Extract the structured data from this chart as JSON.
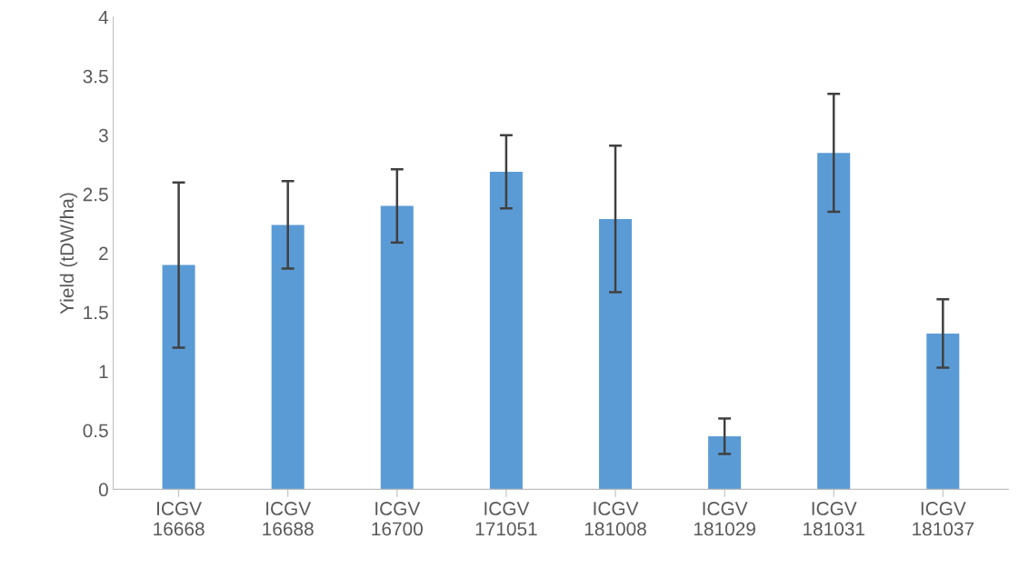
{
  "chart_data": {
    "type": "bar",
    "ylabel": "Yield (tDW/ha)",
    "categories": [
      "ICGV\n16668",
      "ICGV\n16688",
      "ICGV\n16700",
      "ICGV\n171051",
      "ICGV\n181008",
      "ICGV\n181029",
      "ICGV\n181031",
      "ICGV\n181037"
    ],
    "values": [
      1.9,
      2.24,
      2.4,
      2.69,
      2.29,
      0.45,
      2.85,
      1.32
    ],
    "errors": [
      0.7,
      0.37,
      0.31,
      0.31,
      0.62,
      0.15,
      0.5,
      0.29
    ],
    "color": "#5b9bd5",
    "ylim": [
      0,
      4
    ],
    "yticks": [
      0,
      0.5,
      1,
      1.5,
      2,
      2.5,
      3,
      3.5,
      4
    ],
    "grid": false
  }
}
